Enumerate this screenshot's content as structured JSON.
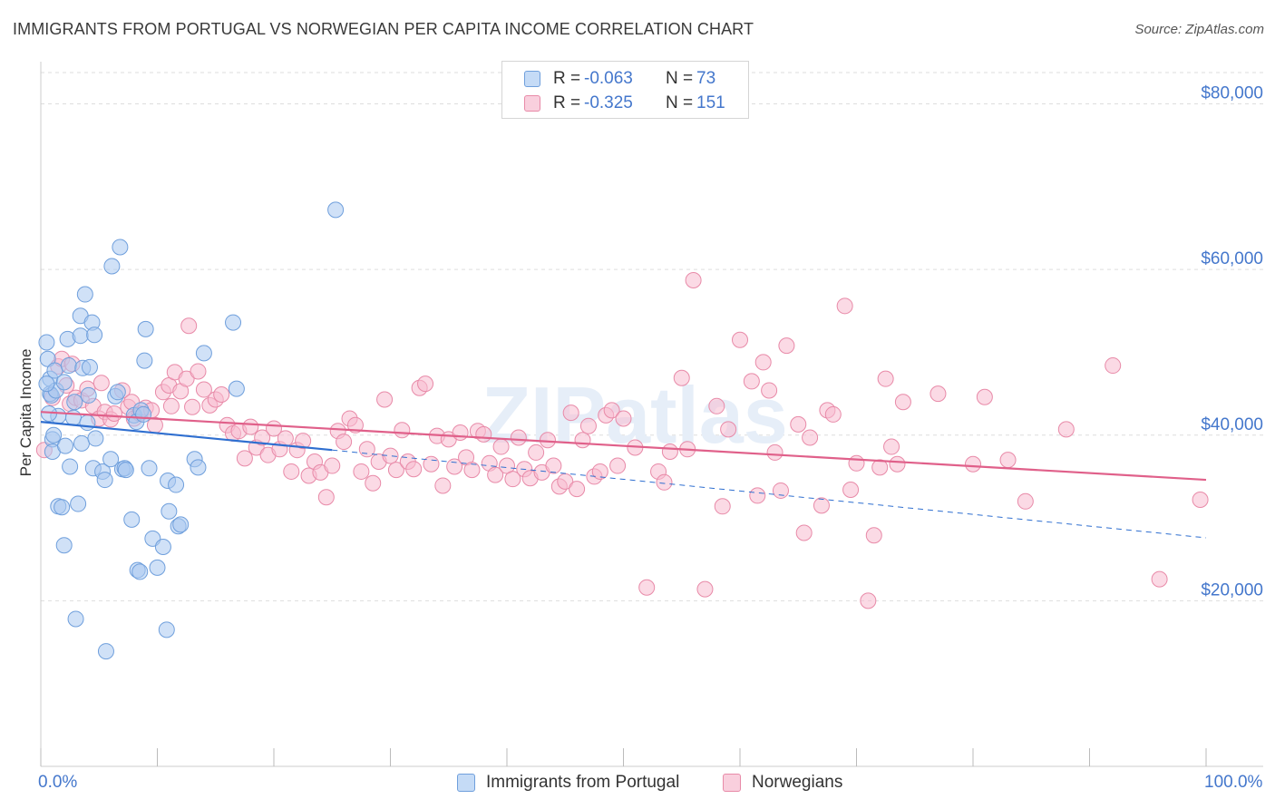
{
  "title": "IMMIGRANTS FROM PORTUGAL VS NORWEGIAN PER CAPITA INCOME CORRELATION CHART",
  "source": "Source: ZipAtlas.com",
  "watermark": "ZIPatlas",
  "legend_top": {
    "rows": [
      {
        "r_label": "R =",
        "r_value": "-0.063",
        "n_label": "N =",
        "n_value": "73"
      },
      {
        "r_label": "R =",
        "r_value": "-0.325",
        "n_label": "N =",
        "n_value": "151"
      }
    ]
  },
  "legend_bottom": {
    "items": [
      {
        "label": "Immigrants from Portugal"
      },
      {
        "label": "Norwegians"
      }
    ]
  },
  "colors": {
    "blue_fill": "#a9c8f0",
    "blue_stroke": "#6f9fdc",
    "blue_line": "#2f6fd0",
    "pink_fill": "#f7bcd0",
    "pink_stroke": "#e88aa8",
    "pink_line": "#e0608a",
    "axis_text": "#4477cc",
    "grid": "#dddddd"
  },
  "chart_data": {
    "type": "scatter",
    "xlabel": "",
    "ylabel": "Per Capita Income",
    "xlim": [
      0,
      100
    ],
    "ylim": [
      0,
      84000
    ],
    "x_tick_labels": [
      "0.0%",
      "100.0%"
    ],
    "y_ticks": [
      20000,
      40000,
      60000,
      80000
    ],
    "y_tick_labels": [
      "$20,000",
      "$40,000",
      "$60,000",
      "$80,000"
    ],
    "grid": "horizontal dashed",
    "series": [
      {
        "name": "Immigrants from Portugal",
        "r": -0.063,
        "n": 73,
        "trend": {
          "x0": 0,
          "y0": 41600,
          "x1": 25,
          "y1": 38200,
          "dash_x1": 100,
          "dash_y1": 27600
        },
        "points": [
          [
            0.5,
            51200
          ],
          [
            0.6,
            49200
          ],
          [
            0.8,
            46800
          ],
          [
            0.8,
            45000
          ],
          [
            0.9,
            44800
          ],
          [
            1.0,
            39500
          ],
          [
            1.0,
            38000
          ],
          [
            1.2,
            47800
          ],
          [
            1.3,
            45400
          ],
          [
            1.5,
            42300
          ],
          [
            1.5,
            31400
          ],
          [
            1.8,
            31300
          ],
          [
            2.0,
            46400
          ],
          [
            2.0,
            26700
          ],
          [
            2.1,
            38700
          ],
          [
            2.3,
            51600
          ],
          [
            2.4,
            48400
          ],
          [
            2.5,
            36200
          ],
          [
            2.8,
            42100
          ],
          [
            2.9,
            44000
          ],
          [
            3.0,
            17800
          ],
          [
            3.2,
            31700
          ],
          [
            3.4,
            52000
          ],
          [
            3.4,
            54400
          ],
          [
            3.5,
            39000
          ],
          [
            3.6,
            48100
          ],
          [
            3.8,
            57000
          ],
          [
            4.0,
            41500
          ],
          [
            4.1,
            44800
          ],
          [
            4.2,
            48200
          ],
          [
            4.4,
            53600
          ],
          [
            4.5,
            36000
          ],
          [
            4.6,
            52100
          ],
          [
            4.7,
            39600
          ],
          [
            5.3,
            35600
          ],
          [
            5.5,
            34600
          ],
          [
            5.6,
            13900
          ],
          [
            6.0,
            37100
          ],
          [
            6.1,
            60400
          ],
          [
            6.4,
            44700
          ],
          [
            6.6,
            45200
          ],
          [
            6.8,
            62700
          ],
          [
            7.0,
            35900
          ],
          [
            7.2,
            36000
          ],
          [
            7.3,
            35800
          ],
          [
            7.8,
            29800
          ],
          [
            8.0,
            42400
          ],
          [
            8.2,
            41600
          ],
          [
            8.3,
            23700
          ],
          [
            8.5,
            23500
          ],
          [
            8.6,
            43000
          ],
          [
            8.8,
            42500
          ],
          [
            8.9,
            49000
          ],
          [
            9.0,
            52800
          ],
          [
            9.3,
            36000
          ],
          [
            9.6,
            27500
          ],
          [
            10.0,
            24000
          ],
          [
            10.5,
            26500
          ],
          [
            10.8,
            16500
          ],
          [
            10.9,
            34500
          ],
          [
            11.0,
            30800
          ],
          [
            11.6,
            34000
          ],
          [
            11.8,
            29000
          ],
          [
            12.0,
            29200
          ],
          [
            13.2,
            37100
          ],
          [
            13.5,
            36100
          ],
          [
            14.0,
            49900
          ],
          [
            16.5,
            53600
          ],
          [
            16.8,
            45600
          ],
          [
            25.3,
            67200
          ],
          [
            0.5,
            46200
          ],
          [
            0.7,
            42600
          ],
          [
            1.1,
            40000
          ]
        ]
      },
      {
        "name": "Norwegians",
        "r": -0.325,
        "n": 151,
        "trend": {
          "x0": 0,
          "y0": 42800,
          "x1": 100,
          "y1": 34600
        },
        "points": [
          [
            0.3,
            38200
          ],
          [
            1.5,
            48300
          ],
          [
            1.8,
            49200
          ],
          [
            2.2,
            46000
          ],
          [
            2.5,
            43800
          ],
          [
            3.0,
            44500
          ],
          [
            3.5,
            44200
          ],
          [
            4.0,
            45600
          ],
          [
            4.5,
            43500
          ],
          [
            5.0,
            42000
          ],
          [
            5.5,
            42800
          ],
          [
            6.0,
            41900
          ],
          [
            6.3,
            42600
          ],
          [
            7.0,
            45400
          ],
          [
            7.5,
            43400
          ],
          [
            8.0,
            42000
          ],
          [
            8.5,
            42600
          ],
          [
            9.0,
            43300
          ],
          [
            9.8,
            41200
          ],
          [
            10.5,
            45200
          ],
          [
            11.0,
            46000
          ],
          [
            11.2,
            43500
          ],
          [
            11.5,
            47600
          ],
          [
            12.0,
            45300
          ],
          [
            12.5,
            46800
          ],
          [
            12.7,
            53200
          ],
          [
            13.0,
            43400
          ],
          [
            13.5,
            47700
          ],
          [
            14.0,
            45500
          ],
          [
            14.5,
            43600
          ],
          [
            15.0,
            44300
          ],
          [
            15.5,
            44900
          ],
          [
            16.0,
            41200
          ],
          [
            16.5,
            40200
          ],
          [
            17.0,
            40500
          ],
          [
            17.5,
            37200
          ],
          [
            18.0,
            41000
          ],
          [
            18.5,
            38500
          ],
          [
            19.0,
            39700
          ],
          [
            19.5,
            37600
          ],
          [
            20.0,
            40800
          ],
          [
            20.5,
            38300
          ],
          [
            21.0,
            39600
          ],
          [
            21.5,
            35600
          ],
          [
            22.0,
            38200
          ],
          [
            22.5,
            39300
          ],
          [
            23.0,
            35100
          ],
          [
            23.5,
            36800
          ],
          [
            24.0,
            35500
          ],
          [
            24.5,
            32500
          ],
          [
            25.0,
            36300
          ],
          [
            25.5,
            40500
          ],
          [
            26.0,
            39200
          ],
          [
            26.5,
            42000
          ],
          [
            27.0,
            41200
          ],
          [
            27.5,
            35600
          ],
          [
            28.0,
            38300
          ],
          [
            28.5,
            34200
          ],
          [
            29.0,
            36800
          ],
          [
            29.5,
            44300
          ],
          [
            30.0,
            37500
          ],
          [
            30.5,
            35800
          ],
          [
            31.0,
            40600
          ],
          [
            31.5,
            36800
          ],
          [
            32.0,
            35900
          ],
          [
            32.5,
            45700
          ],
          [
            33.0,
            46200
          ],
          [
            33.5,
            36500
          ],
          [
            34.0,
            39900
          ],
          [
            34.5,
            33900
          ],
          [
            35.0,
            39500
          ],
          [
            35.5,
            36200
          ],
          [
            36.0,
            40300
          ],
          [
            36.5,
            37300
          ],
          [
            37.0,
            35800
          ],
          [
            37.5,
            40500
          ],
          [
            38.0,
            40100
          ],
          [
            38.5,
            36600
          ],
          [
            39.0,
            35200
          ],
          [
            39.5,
            38600
          ],
          [
            40.0,
            36300
          ],
          [
            40.5,
            34700
          ],
          [
            41.0,
            39700
          ],
          [
            41.5,
            35900
          ],
          [
            42.0,
            34800
          ],
          [
            42.5,
            37900
          ],
          [
            43.0,
            35500
          ],
          [
            43.5,
            39400
          ],
          [
            44.0,
            36300
          ],
          [
            44.5,
            33800
          ],
          [
            45.0,
            34400
          ],
          [
            45.5,
            42700
          ],
          [
            46.0,
            33500
          ],
          [
            46.5,
            39400
          ],
          [
            47.0,
            41100
          ],
          [
            47.5,
            35000
          ],
          [
            48.0,
            35600
          ],
          [
            48.5,
            42400
          ],
          [
            49.0,
            43000
          ],
          [
            49.5,
            36300
          ],
          [
            50.0,
            42000
          ],
          [
            51.0,
            38500
          ],
          [
            52.0,
            21600
          ],
          [
            53.0,
            35600
          ],
          [
            53.5,
            34300
          ],
          [
            54.0,
            38000
          ],
          [
            55.0,
            46900
          ],
          [
            55.5,
            38300
          ],
          [
            56.0,
            58700
          ],
          [
            57.0,
            21400
          ],
          [
            58.0,
            43500
          ],
          [
            58.5,
            31400
          ],
          [
            59.0,
            40700
          ],
          [
            60.0,
            51500
          ],
          [
            61.0,
            46500
          ],
          [
            61.5,
            32700
          ],
          [
            62.0,
            48800
          ],
          [
            62.5,
            45400
          ],
          [
            63.0,
            37900
          ],
          [
            63.5,
            33300
          ],
          [
            64.0,
            50800
          ],
          [
            65.0,
            41300
          ],
          [
            65.5,
            28200
          ],
          [
            66.0,
            39700
          ],
          [
            67.0,
            31500
          ],
          [
            67.5,
            43000
          ],
          [
            68.0,
            42500
          ],
          [
            69.0,
            55600
          ],
          [
            69.5,
            33400
          ],
          [
            70.0,
            36600
          ],
          [
            71.0,
            20000
          ],
          [
            71.5,
            27900
          ],
          [
            72.0,
            36100
          ],
          [
            72.5,
            46800
          ],
          [
            73.0,
            38600
          ],
          [
            73.5,
            36500
          ],
          [
            74.0,
            44000
          ],
          [
            77.0,
            45000
          ],
          [
            80.0,
            36500
          ],
          [
            81.0,
            44600
          ],
          [
            83.0,
            37000
          ],
          [
            84.5,
            32000
          ],
          [
            88.0,
            40700
          ],
          [
            92.0,
            48400
          ],
          [
            96.0,
            22600
          ],
          [
            99.5,
            32200
          ],
          [
            1.0,
            44500
          ],
          [
            2.7,
            48600
          ],
          [
            5.2,
            46300
          ],
          [
            7.8,
            44000
          ],
          [
            9.5,
            43000
          ]
        ]
      }
    ]
  }
}
